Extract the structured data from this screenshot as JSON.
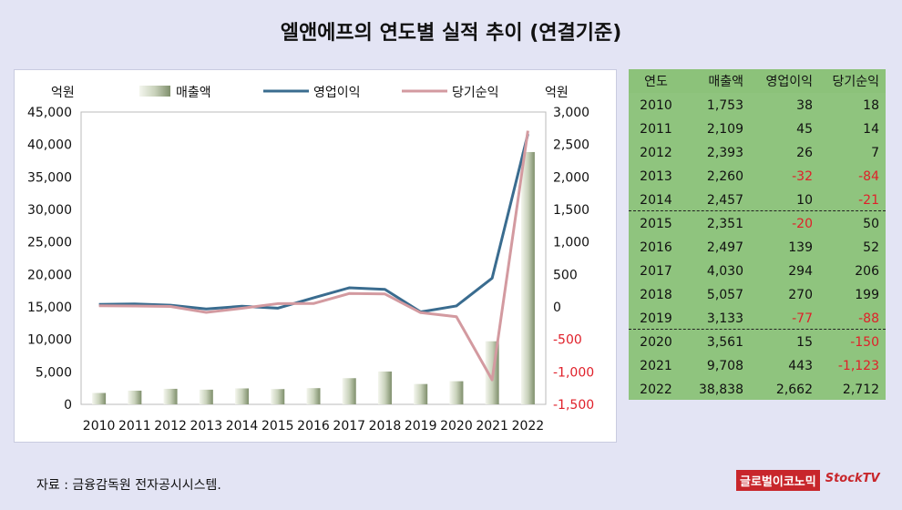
{
  "title": "엘앤에프의 연도별 실적 추이 (연결기준)",
  "source": "자료 : 금융감독원 전자공시시스템.",
  "brand": {
    "logo1": "글로벌이코노믹",
    "logo2": "StockTV"
  },
  "colors": {
    "sales": "#a8b795",
    "op": "#3a6c8f",
    "net": "#d39aa0",
    "table_bg": "#8fc47e",
    "negative": "#e0202a"
  },
  "chart_data": {
    "type": "bar",
    "categories": [
      "2010",
      "2011",
      "2012",
      "2013",
      "2014",
      "2015",
      "2016",
      "2017",
      "2018",
      "2019",
      "2020",
      "2021",
      "2022"
    ],
    "left_unit": "억원",
    "right_unit": "억원",
    "left_ylim": [
      0,
      45000
    ],
    "left_ticks": [
      "0",
      "5,000",
      "10,000",
      "15,000",
      "20,000",
      "25,000",
      "30,000",
      "35,000",
      "40,000",
      "45,000"
    ],
    "right_ylim": [
      -1500,
      3000
    ],
    "right_ticks": [
      "-1,500",
      "-1,000",
      "-500",
      "0",
      "500",
      "1,000",
      "1,500",
      "2,000",
      "2,500",
      "3,000"
    ],
    "legend_position": "top",
    "series": [
      {
        "name": "매출액",
        "type": "bar",
        "axis": "left",
        "values": [
          1753,
          2109,
          2393,
          2260,
          2457,
          2351,
          2497,
          4030,
          5057,
          3133,
          3561,
          9708,
          38838
        ]
      },
      {
        "name": "영업이익",
        "type": "line",
        "axis": "right",
        "values": [
          38,
          45,
          26,
          -32,
          10,
          -20,
          139,
          294,
          270,
          -77,
          15,
          443,
          2662
        ]
      },
      {
        "name": "당기순익",
        "type": "line",
        "axis": "right",
        "values": [
          18,
          14,
          7,
          -84,
          -21,
          50,
          52,
          206,
          199,
          -88,
          -150,
          -1123,
          2712
        ]
      }
    ]
  },
  "table": {
    "headers": [
      "연도",
      "매출액",
      "영업이익",
      "당기순익"
    ],
    "rows": [
      [
        "2010",
        "1,753",
        "38",
        "18"
      ],
      [
        "2011",
        "2,109",
        "45",
        "14"
      ],
      [
        "2012",
        "2,393",
        "26",
        "7"
      ],
      [
        "2013",
        "2,260",
        "-32",
        "-84"
      ],
      [
        "2014",
        "2,457",
        "10",
        "-21"
      ],
      [
        "2015",
        "2,351",
        "-20",
        "50"
      ],
      [
        "2016",
        "2,497",
        "139",
        "52"
      ],
      [
        "2017",
        "4,030",
        "294",
        "206"
      ],
      [
        "2018",
        "5,057",
        "270",
        "199"
      ],
      [
        "2019",
        "3,133",
        "-77",
        "-88"
      ],
      [
        "2020",
        "3,561",
        "15",
        "-150"
      ],
      [
        "2021",
        "9,708",
        "443",
        "-1,123"
      ],
      [
        "2022",
        "38,838",
        "2,662",
        "2,712"
      ]
    ]
  }
}
